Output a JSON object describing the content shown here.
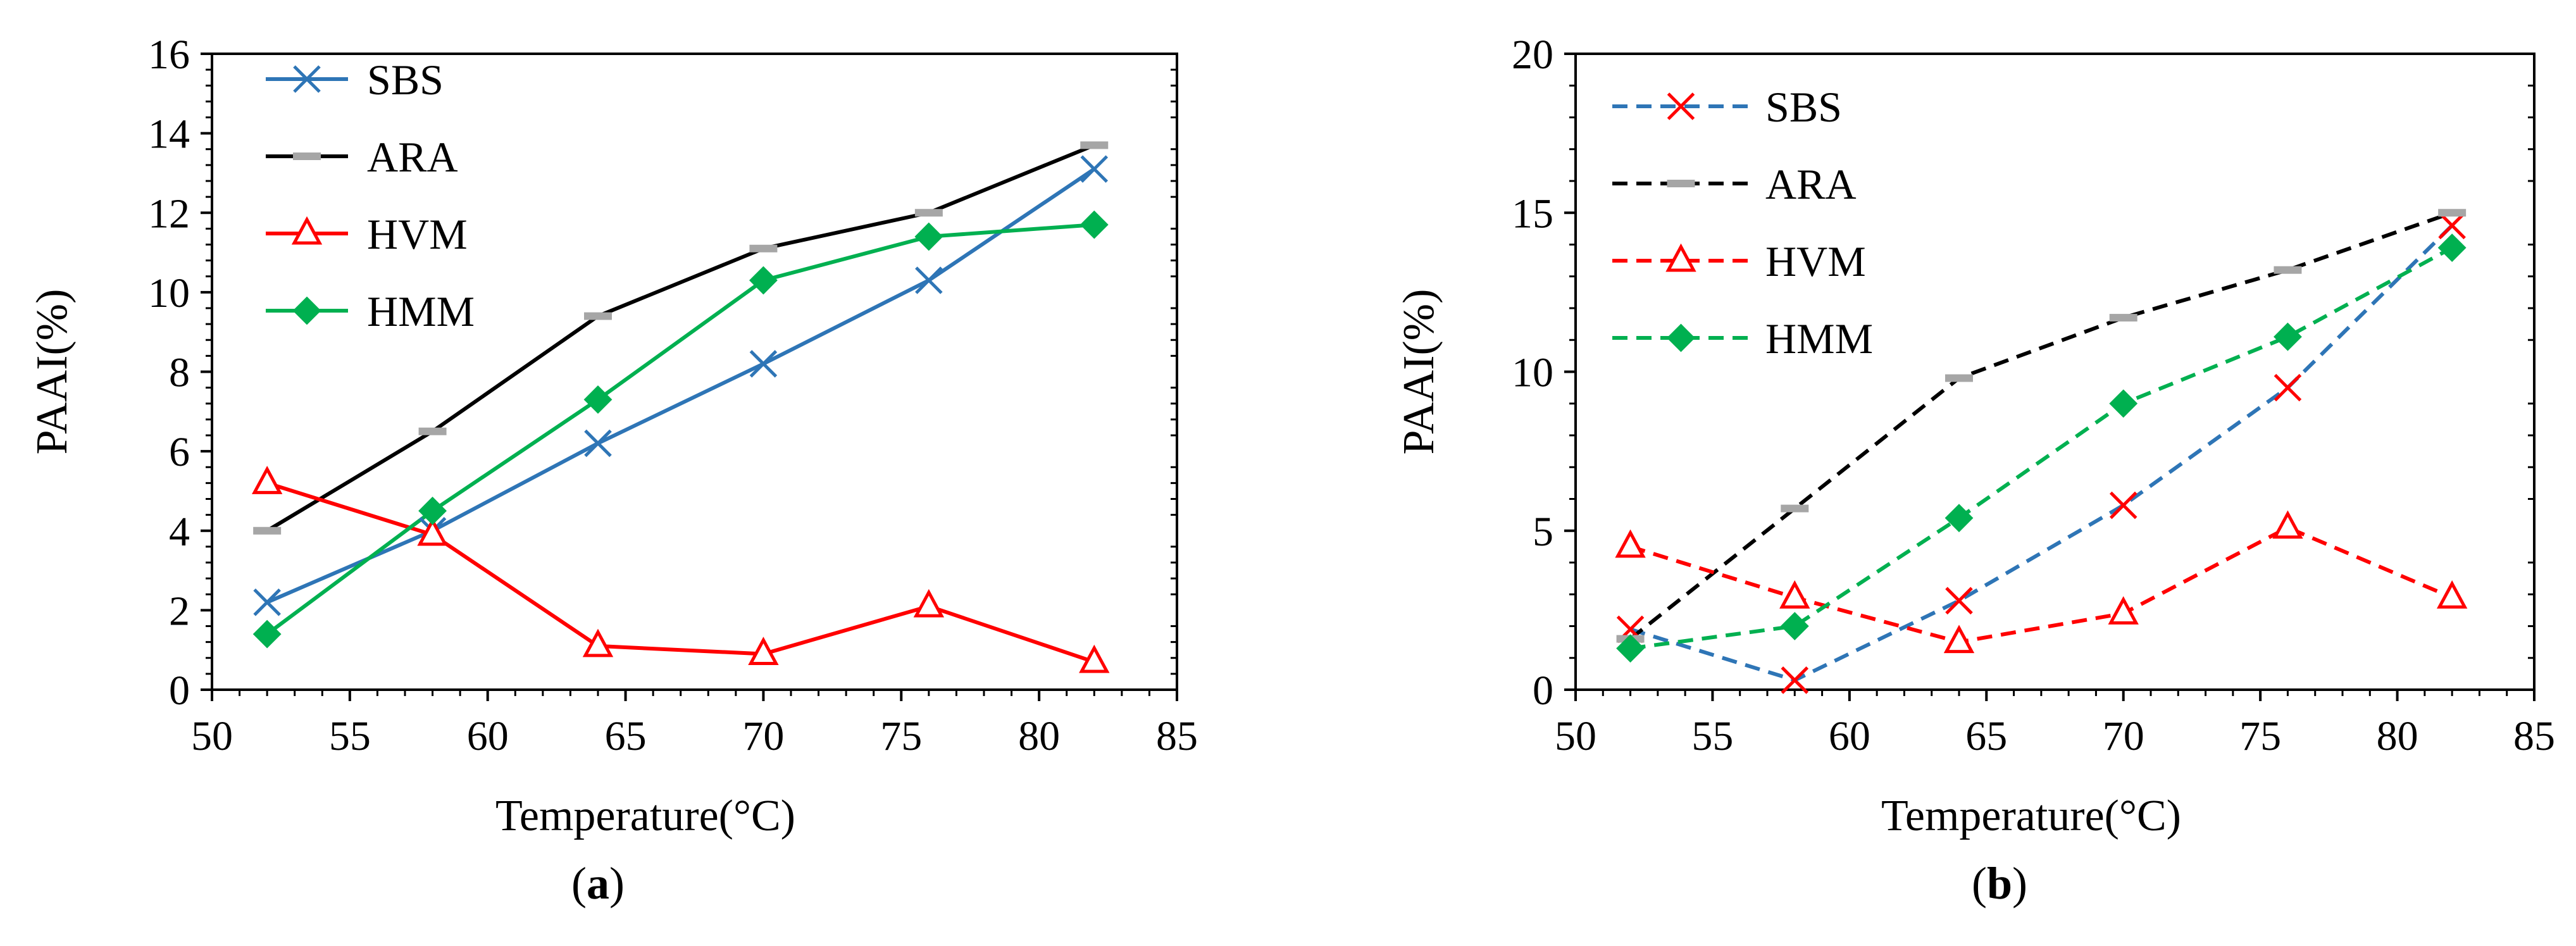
{
  "figure": {
    "panels": [
      {
        "label_open": "(",
        "label_letter": "a",
        "label_close": ")"
      },
      {
        "label_open": "(",
        "label_letter": "b",
        "label_close": ")"
      }
    ]
  },
  "chart_data": [
    {
      "type": "line",
      "panel": "a",
      "title": "",
      "xlabel": "Temperature(°C)",
      "ylabel": "PAAI(%)",
      "x": [
        52,
        58,
        64,
        70,
        76,
        82
      ],
      "xlim": [
        50,
        85
      ],
      "ylim": [
        0,
        16
      ],
      "xticks": [
        50,
        55,
        60,
        65,
        70,
        75,
        80,
        85
      ],
      "yticks": [
        0,
        2,
        4,
        6,
        8,
        10,
        12,
        14,
        16
      ],
      "grid": false,
      "legend_position": "top-left",
      "series": [
        {
          "name": "SBS",
          "color": "#2E75B6",
          "marker": "x",
          "dash": "solid",
          "values": [
            2.2,
            4.0,
            6.2,
            8.2,
            10.3,
            13.1
          ]
        },
        {
          "name": "ARA",
          "color": "#000000",
          "marker": "dash",
          "marker_color": "#A6A6A6",
          "dash": "solid",
          "values": [
            4.0,
            6.5,
            9.4,
            11.1,
            12.0,
            13.7
          ]
        },
        {
          "name": "HVM",
          "color": "#FF0000",
          "marker": "triangle",
          "dash": "solid",
          "values": [
            5.2,
            3.9,
            1.1,
            0.9,
            2.1,
            0.7
          ]
        },
        {
          "name": "HMM",
          "color": "#00B050",
          "marker": "diamond",
          "dash": "solid",
          "values": [
            1.4,
            4.5,
            7.3,
            10.3,
            11.4,
            11.7
          ]
        }
      ]
    },
    {
      "type": "line",
      "panel": "b",
      "title": "",
      "xlabel": "Temperature(°C)",
      "ylabel": "PAAI(%)",
      "x": [
        52,
        58,
        64,
        70,
        76,
        82
      ],
      "xlim": [
        50,
        85
      ],
      "ylim": [
        0,
        20
      ],
      "xticks": [
        50,
        55,
        60,
        65,
        70,
        75,
        80,
        85
      ],
      "yticks": [
        0,
        5,
        10,
        15,
        20
      ],
      "grid": false,
      "legend_position": "top-left",
      "series": [
        {
          "name": "SBS",
          "color": "#2E75B6",
          "marker": "x",
          "marker_color": "#FF0000",
          "dash": "dashed",
          "values": [
            1.9,
            0.3,
            2.8,
            5.8,
            9.5,
            14.6
          ]
        },
        {
          "name": "ARA",
          "color": "#000000",
          "marker": "dash",
          "marker_color": "#A6A6A6",
          "dash": "dashed",
          "values": [
            1.6,
            5.7,
            9.8,
            11.7,
            13.2,
            15.0
          ]
        },
        {
          "name": "HVM",
          "color": "#FF0000",
          "marker": "triangle",
          "dash": "dashed",
          "values": [
            4.5,
            2.9,
            1.5,
            2.4,
            5.1,
            2.9
          ]
        },
        {
          "name": "HMM",
          "color": "#00B050",
          "marker": "diamond",
          "dash": "dashed",
          "values": [
            1.3,
            2.0,
            5.4,
            9.0,
            11.1,
            13.9
          ]
        }
      ]
    }
  ]
}
